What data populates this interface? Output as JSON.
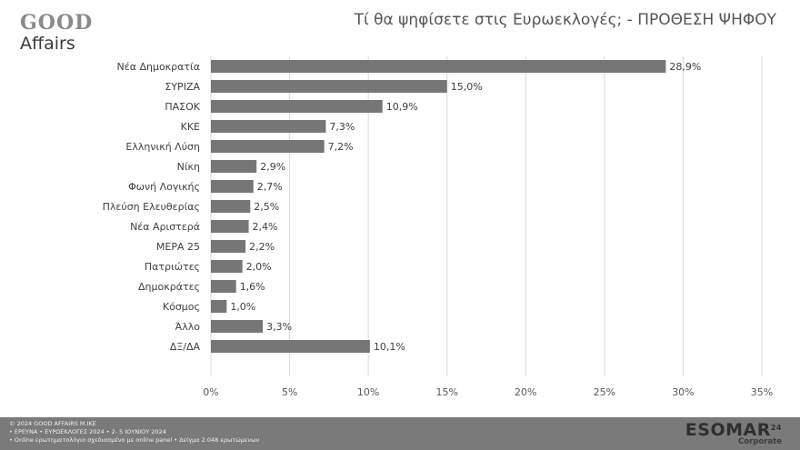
{
  "brand": {
    "logo_line1": "GOOD",
    "logo_line2": "Affairs"
  },
  "footer": {
    "line1": "© 2024 GOOD AFFAIRS M.IKE",
    "line2": "• ΕΡΕΥΝΑ • ΕΥΡΩΕΚΛΟΓΕΣ 2024 • 2- 5 ΙΟΥΝΙΟΥ 2024",
    "line3": "• Online ερωτηματολόγιο σχεδιασμένο με online panel   • Δείγμα 2.048 ερωτώμενων",
    "esomar": "ESOMAR",
    "esomar_sup": "24",
    "esomar_sub": "Corporate"
  },
  "colors": {
    "bar": "#767676",
    "grid": "#d9d9d9",
    "footer_bg": "#7a7a7a"
  },
  "chart_data": {
    "type": "bar",
    "orientation": "horizontal",
    "title": "Τί θα ψηφίσετε στις Ευρωεκλογές; - ΠΡΟΘΕΣΗ ΨΗΦΟΥ",
    "categories": [
      "Νέα Δημοκρατία",
      "ΣΥΡΙΖΑ",
      "ΠΑΣΟΚ",
      "ΚΚΕ",
      "Ελληνική Λύση",
      "Νίκη",
      "Φωνή Λογικής",
      "Πλεύση Ελευθερίας",
      "Νέα Αριστερά",
      "ΜΕΡΑ 25",
      "Πατριώτες",
      "Δημοκράτες",
      "Κόσμος",
      "Άλλο",
      "ΔΞ/ΔΑ"
    ],
    "values": [
      28.9,
      15.0,
      10.9,
      7.3,
      7.2,
      2.9,
      2.7,
      2.5,
      2.4,
      2.2,
      2.0,
      1.6,
      1.0,
      3.3,
      10.1
    ],
    "value_labels": [
      "28,9%",
      "15,0%",
      "10,9%",
      "7,3%",
      "7,2%",
      "2,9%",
      "2,7%",
      "2,5%",
      "2,4%",
      "2,2%",
      "2,0%",
      "1,6%",
      "1,0%",
      "3,3%",
      "10,1%"
    ],
    "xlim": [
      0,
      35
    ],
    "xticks": [
      0,
      5,
      10,
      15,
      20,
      25,
      30,
      35
    ],
    "xtick_labels": [
      "0%",
      "5%",
      "10%",
      "15%",
      "20%",
      "25%",
      "30%",
      "35%"
    ],
    "xlabel": "",
    "ylabel": "",
    "grid": "vertical"
  }
}
